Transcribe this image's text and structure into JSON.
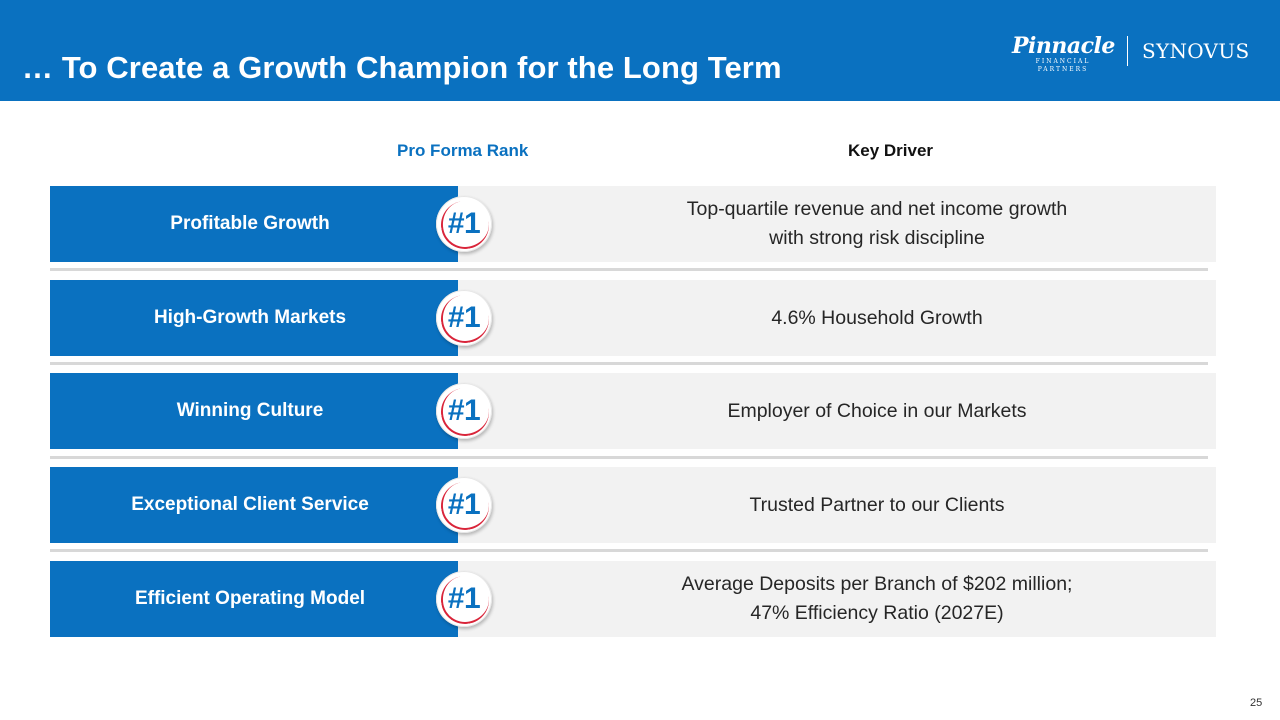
{
  "header": {
    "title": "… To Create a Growth Champion for the Long Term",
    "logo_pinnacle": "Pinnacle",
    "logo_pinnacle_sub": "FINANCIAL PARTNERS",
    "logo_synovus": "SYNOVUS"
  },
  "columns": {
    "rank": "Pro Forma Rank",
    "driver": "Key Driver"
  },
  "rows": [
    {
      "category": "Profitable Growth",
      "rank": "#1",
      "driver": "Top-quartile revenue and net income growth\nwith strong risk discipline"
    },
    {
      "category": "High-Growth Markets",
      "rank": "#1",
      "driver": "4.6% Household Growth"
    },
    {
      "category": "Winning Culture",
      "rank": "#1",
      "driver": "Employer of Choice in our Markets"
    },
    {
      "category": "Exceptional Client Service",
      "rank": "#1",
      "driver": "Trusted Partner to our Clients"
    },
    {
      "category": "Efficient Operating Model",
      "rank": "#1",
      "driver": "Average Deposits per Branch of $202 million;\n47% Efficiency Ratio (2027E)"
    }
  ],
  "colors": {
    "brand_blue": "#0a71c0",
    "accent_red": "#d9253a",
    "row_gray": "#f2f2f2"
  },
  "page_number": "25"
}
